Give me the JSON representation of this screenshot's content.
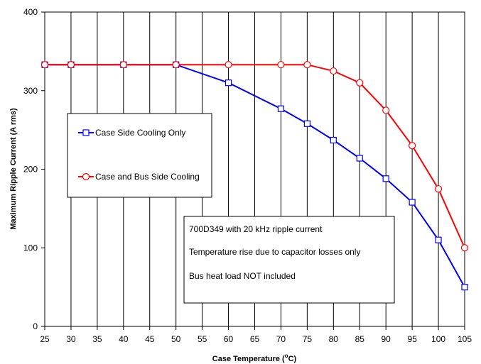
{
  "chart_data": {
    "type": "line",
    "xlabel_main": "Case Temperature (",
    "xlabel_sup": "o",
    "xlabel_end": "C)",
    "ylabel": "Maximum Ripple Current (A rms)",
    "categories": [
      "25",
      "30",
      "35",
      "40",
      "45",
      "50",
      "55",
      "60",
      "65",
      "70",
      "75",
      "80",
      "85",
      "90",
      "95",
      "100",
      "105"
    ],
    "xlim": [
      25,
      105
    ],
    "ylim": [
      0,
      400
    ],
    "yticks": [
      "0",
      "100",
      "200",
      "300",
      "400"
    ],
    "grid": "vertical",
    "series": [
      {
        "name": "Case Side Cooling Only",
        "color": "#0000ff",
        "marker": "square",
        "points": [
          {
            "x": 25,
            "y": 333
          },
          {
            "x": 30,
            "y": 333
          },
          {
            "x": 40,
            "y": 333
          },
          {
            "x": 50,
            "y": 333
          },
          {
            "x": 60,
            "y": 310
          },
          {
            "x": 70,
            "y": 277
          },
          {
            "x": 75,
            "y": 258
          },
          {
            "x": 80,
            "y": 237
          },
          {
            "x": 85,
            "y": 214
          },
          {
            "x": 90,
            "y": 188
          },
          {
            "x": 95,
            "y": 158
          },
          {
            "x": 100,
            "y": 110
          },
          {
            "x": 105,
            "y": 50
          }
        ]
      },
      {
        "name": "Case and Bus Side Cooling",
        "color": "#ff0000",
        "marker": "circle",
        "points": [
          {
            "x": 25,
            "y": 333
          },
          {
            "x": 30,
            "y": 333
          },
          {
            "x": 40,
            "y": 333
          },
          {
            "x": 50,
            "y": 333
          },
          {
            "x": 60,
            "y": 333
          },
          {
            "x": 70,
            "y": 333
          },
          {
            "x": 75,
            "y": 333
          },
          {
            "x": 80,
            "y": 325
          },
          {
            "x": 85,
            "y": 310
          },
          {
            "x": 90,
            "y": 275
          },
          {
            "x": 95,
            "y": 230
          },
          {
            "x": 100,
            "y": 175
          },
          {
            "x": 105,
            "y": 100
          }
        ]
      }
    ],
    "annotation_lines": [
      "700D349 with 20 kHz ripple current",
      "Temperature rise due to capacitor losses only",
      "Bus heat load NOT included"
    ]
  }
}
